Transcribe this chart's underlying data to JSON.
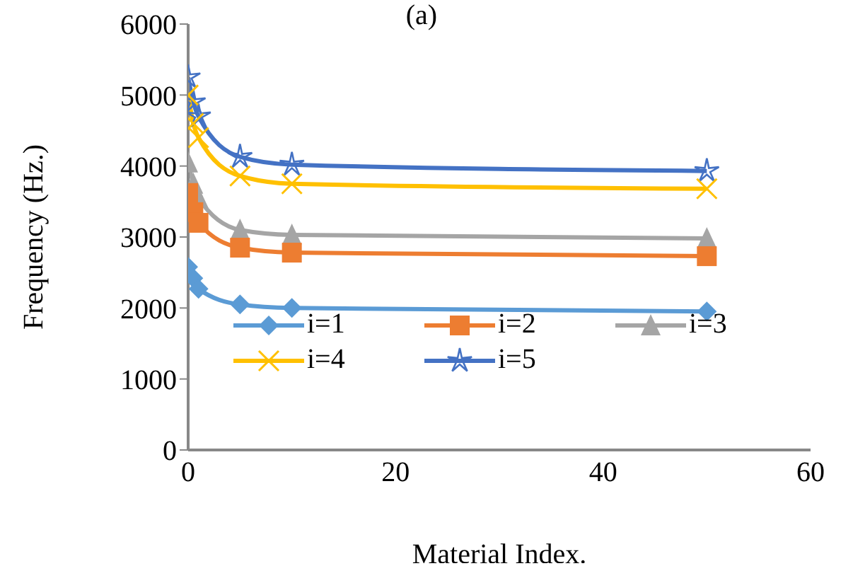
{
  "chart_data": {
    "type": "line",
    "title": "(a)",
    "xlabel": "Material Index.",
    "ylabel": "Frequency (Hz.)",
    "x": [
      0,
      0.5,
      1,
      5,
      10,
      50
    ],
    "xlim": [
      0,
      60
    ],
    "xticks": [
      0,
      20,
      40,
      60
    ],
    "ylim": [
      0,
      6000
    ],
    "yticks": [
      0,
      1000,
      2000,
      3000,
      4000,
      5000,
      6000
    ],
    "grid": false,
    "legend": "bottom",
    "series": [
      {
        "name": "i=1",
        "color": "#5b9bd5",
        "marker": "diamond",
        "values": [
          2580,
          2420,
          2270,
          2050,
          2000,
          1950
        ]
      },
      {
        "name": "i=2",
        "color": "#ed7d31",
        "marker": "square",
        "values": [
          3620,
          3350,
          3200,
          2850,
          2780,
          2730
        ]
      },
      {
        "name": "i=3",
        "color": "#a5a5a5",
        "marker": "triangle",
        "values": [
          4050,
          3750,
          3550,
          3100,
          3030,
          2980
        ]
      },
      {
        "name": "i=4",
        "color": "#ffc000",
        "marker": "cross",
        "values": [
          5000,
          4600,
          4400,
          3860,
          3750,
          3680
        ]
      },
      {
        "name": "i=5",
        "color": "#4472c4",
        "marker": "star",
        "values": [
          5250,
          4900,
          4700,
          4130,
          4020,
          3930
        ]
      }
    ]
  }
}
